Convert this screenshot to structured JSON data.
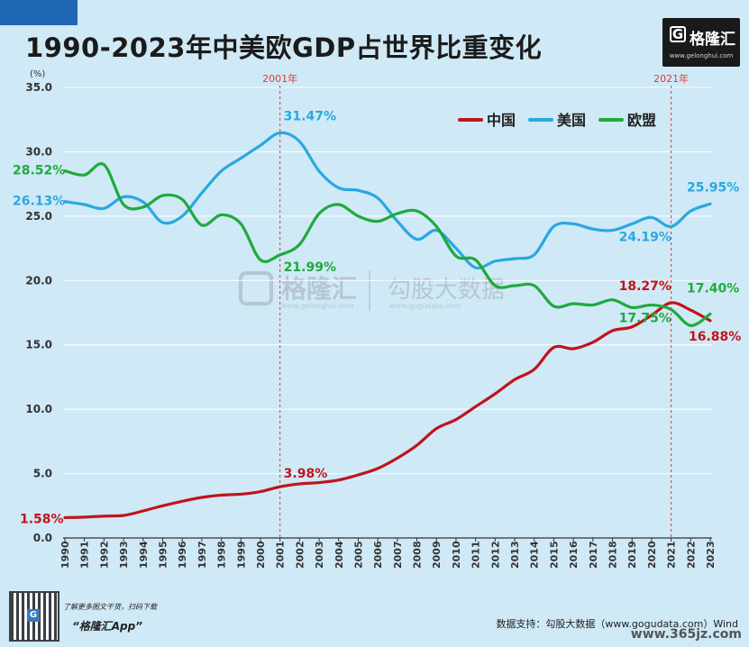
{
  "title": "1990-2023年中美欧GDP占世界比重变化",
  "brand": {
    "logo_letter": "G",
    "name": "格隆汇",
    "url": "www.gelonghui.com"
  },
  "footer": {
    "note": "了解更多图文干货，扫码下载",
    "app": "“格隆汇App”",
    "source": "数据支持：勾股大数据（www.gogudata.com）Wind",
    "watermark_site": "www.365jz.com"
  },
  "watermark": {
    "left_text": "格隆汇",
    "left_url": "www.gelonghui.com",
    "right_text": "勾股大数据",
    "right_url": "www.gogudata.com"
  },
  "colors": {
    "china": "#c0141b",
    "usa": "#29a8e0",
    "eu": "#1faa3c",
    "ref_line": "#e53935"
  },
  "chart_data": {
    "type": "line",
    "ylabel": "(%)",
    "ylim": [
      0,
      35
    ],
    "yticks": [
      "0.0",
      "5.0",
      "10.0",
      "15.0",
      "20.0",
      "25.0",
      "30.0",
      "35.0"
    ],
    "x": [
      "1990",
      "1991",
      "1992",
      "1993",
      "1994",
      "1995",
      "1996",
      "1997",
      "1998",
      "1999",
      "2000",
      "2001",
      "2002",
      "2003",
      "2004",
      "2005",
      "2006",
      "2007",
      "2008",
      "2009",
      "2010",
      "2011",
      "2012",
      "2013",
      "2014",
      "2015",
      "2016",
      "2017",
      "2018",
      "2019",
      "2020",
      "2021",
      "2022",
      "2023"
    ],
    "legend_position": "top-right",
    "series": [
      {
        "name": "中国",
        "color": "#c0141b",
        "values": [
          1.58,
          1.62,
          1.7,
          1.75,
          2.1,
          2.5,
          2.85,
          3.15,
          3.33,
          3.4,
          3.6,
          3.98,
          4.2,
          4.3,
          4.5,
          4.9,
          5.4,
          6.2,
          7.2,
          8.5,
          9.2,
          10.2,
          11.2,
          12.3,
          13.1,
          14.8,
          14.7,
          15.2,
          16.1,
          16.4,
          17.3,
          18.27,
          17.7,
          16.88
        ]
      },
      {
        "name": "美国",
        "color": "#29a8e0",
        "values": [
          26.13,
          25.9,
          25.6,
          26.5,
          26.1,
          24.5,
          25.0,
          26.8,
          28.5,
          29.5,
          30.5,
          31.47,
          30.8,
          28.5,
          27.2,
          27.0,
          26.4,
          24.6,
          23.2,
          23.9,
          22.5,
          21.0,
          21.5,
          21.7,
          22.0,
          24.2,
          24.4,
          24.0,
          23.9,
          24.4,
          24.9,
          24.19,
          25.4,
          25.95
        ]
      },
      {
        "name": "欧盟",
        "color": "#1faa3c",
        "values": [
          28.52,
          28.2,
          29.0,
          25.9,
          25.7,
          26.6,
          26.3,
          24.3,
          25.1,
          24.4,
          21.6,
          21.99,
          22.8,
          25.2,
          25.9,
          25.0,
          24.6,
          25.2,
          25.4,
          24.2,
          21.9,
          21.6,
          19.6,
          19.6,
          19.6,
          18.0,
          18.2,
          18.1,
          18.5,
          17.9,
          18.1,
          17.75,
          16.5,
          17.4
        ]
      }
    ],
    "annotations": [
      {
        "series": "中国",
        "x": "1990",
        "label": "1.58%"
      },
      {
        "series": "中国",
        "x": "2001",
        "label": "3.98%"
      },
      {
        "series": "中国",
        "x": "2021",
        "label": "18.27%"
      },
      {
        "series": "中国",
        "x": "2023",
        "label": "16.88%"
      },
      {
        "series": "美国",
        "x": "1990",
        "label": "26.13%"
      },
      {
        "series": "美国",
        "x": "2001",
        "label": "31.47%"
      },
      {
        "series": "美国",
        "x": "2021",
        "label": "24.19%"
      },
      {
        "series": "美国",
        "x": "2023",
        "label": "25.95%"
      },
      {
        "series": "欧盟",
        "x": "1990",
        "label": "28.52%"
      },
      {
        "series": "欧盟",
        "x": "2001",
        "label": "21.99%"
      },
      {
        "series": "欧盟",
        "x": "2021",
        "label": "17.75%"
      },
      {
        "series": "欧盟",
        "x": "2023",
        "label": "17.40%"
      }
    ],
    "reference_lines": [
      {
        "x": "2001",
        "label": "2001年"
      },
      {
        "x": "2021",
        "label": "2021年"
      }
    ]
  }
}
